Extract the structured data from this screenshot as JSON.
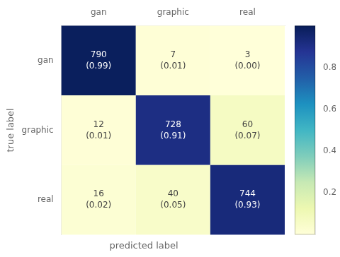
{
  "chart_data": {
    "type": "heatmap",
    "xlabel": "predicted label",
    "ylabel": "true label",
    "categories": [
      "gan",
      "graphic",
      "real"
    ],
    "values": [
      [
        0.99,
        0.01,
        0.0
      ],
      [
        0.01,
        0.91,
        0.07
      ],
      [
        0.02,
        0.05,
        0.93
      ]
    ],
    "value_labels": [
      [
        "(0.99)",
        "(0.01)",
        "(0.00)"
      ],
      [
        "(0.01)",
        "(0.91)",
        "(0.07)"
      ],
      [
        "(0.02)",
        "(0.05)",
        "(0.93)"
      ]
    ],
    "counts": [
      [
        790,
        7,
        3
      ],
      [
        12,
        728,
        60
      ],
      [
        16,
        40,
        744
      ]
    ],
    "data_labels": true,
    "grid": false,
    "colorbar_range": [
      0.0,
      1.0
    ],
    "colorbar_ticks": [
      0.2,
      0.4,
      0.6,
      0.8
    ]
  }
}
